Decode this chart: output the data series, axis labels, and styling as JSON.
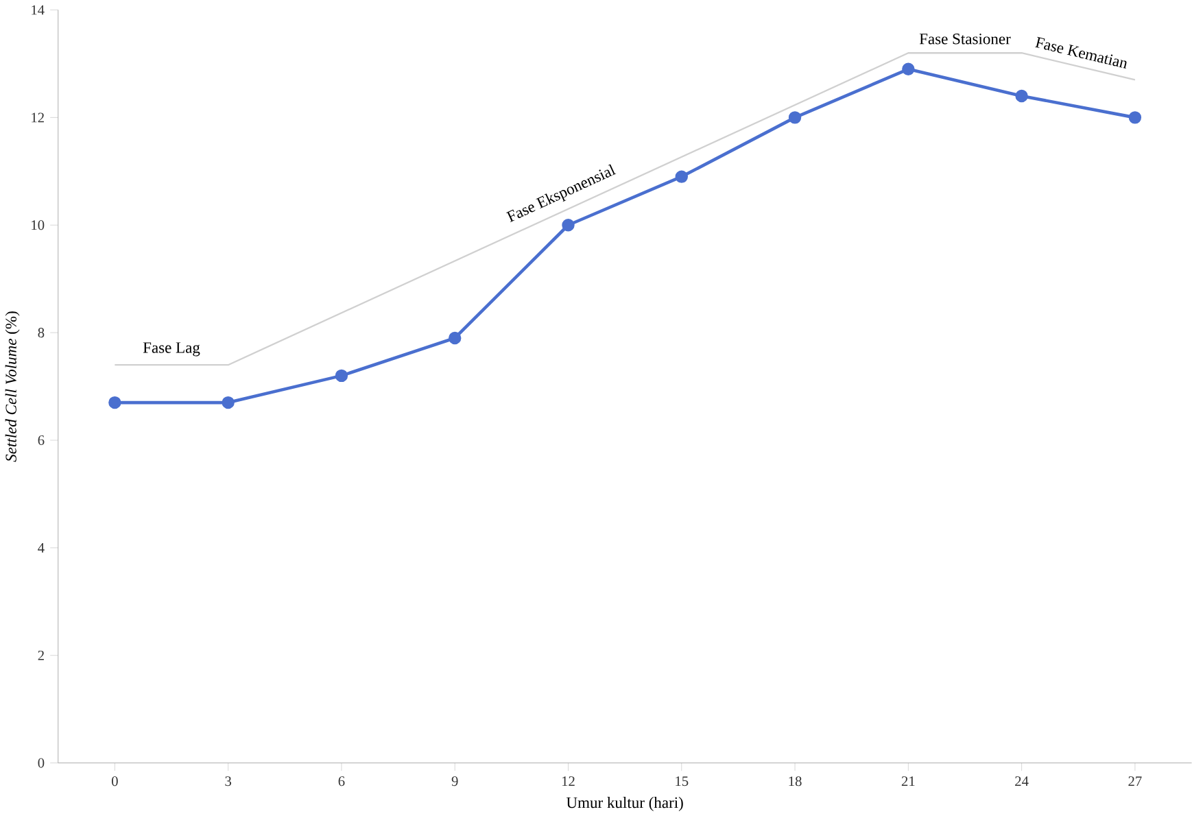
{
  "chart_data": {
    "type": "line",
    "xlabel": "Umur kultur (hari)",
    "ylabel": "*Settled Cell Volume* (%)",
    "xlim": [
      -1.5,
      28.5
    ],
    "xticks": [
      0,
      3,
      6,
      9,
      12,
      15,
      18,
      21,
      24,
      27
    ],
    "ylim": [
      0,
      14
    ],
    "yticks": [
      0,
      2,
      4,
      6,
      8,
      10,
      12,
      14
    ],
    "grid": false,
    "series": [
      {
        "color": "#d0d0d0",
        "marker": "none",
        "x": [
          0,
          3,
          21,
          24,
          27
        ],
        "values": [
          7.4,
          7.4,
          13.2,
          13.2,
          12.7
        ]
      },
      {
        "color": "#4a6fcf",
        "marker": "circle",
        "x": [
          0,
          3,
          6,
          9,
          12,
          15,
          18,
          21,
          24,
          27
        ],
        "values": [
          6.7,
          6.7,
          7.2,
          7.9,
          10.0,
          10.9,
          12.0,
          12.9,
          12.4,
          12.0
        ]
      }
    ],
    "annotations": [
      "Fase Lag",
      "Fase Eksponensial",
      "Fase Stasioner",
      "Fase Kematian"
    ]
  }
}
